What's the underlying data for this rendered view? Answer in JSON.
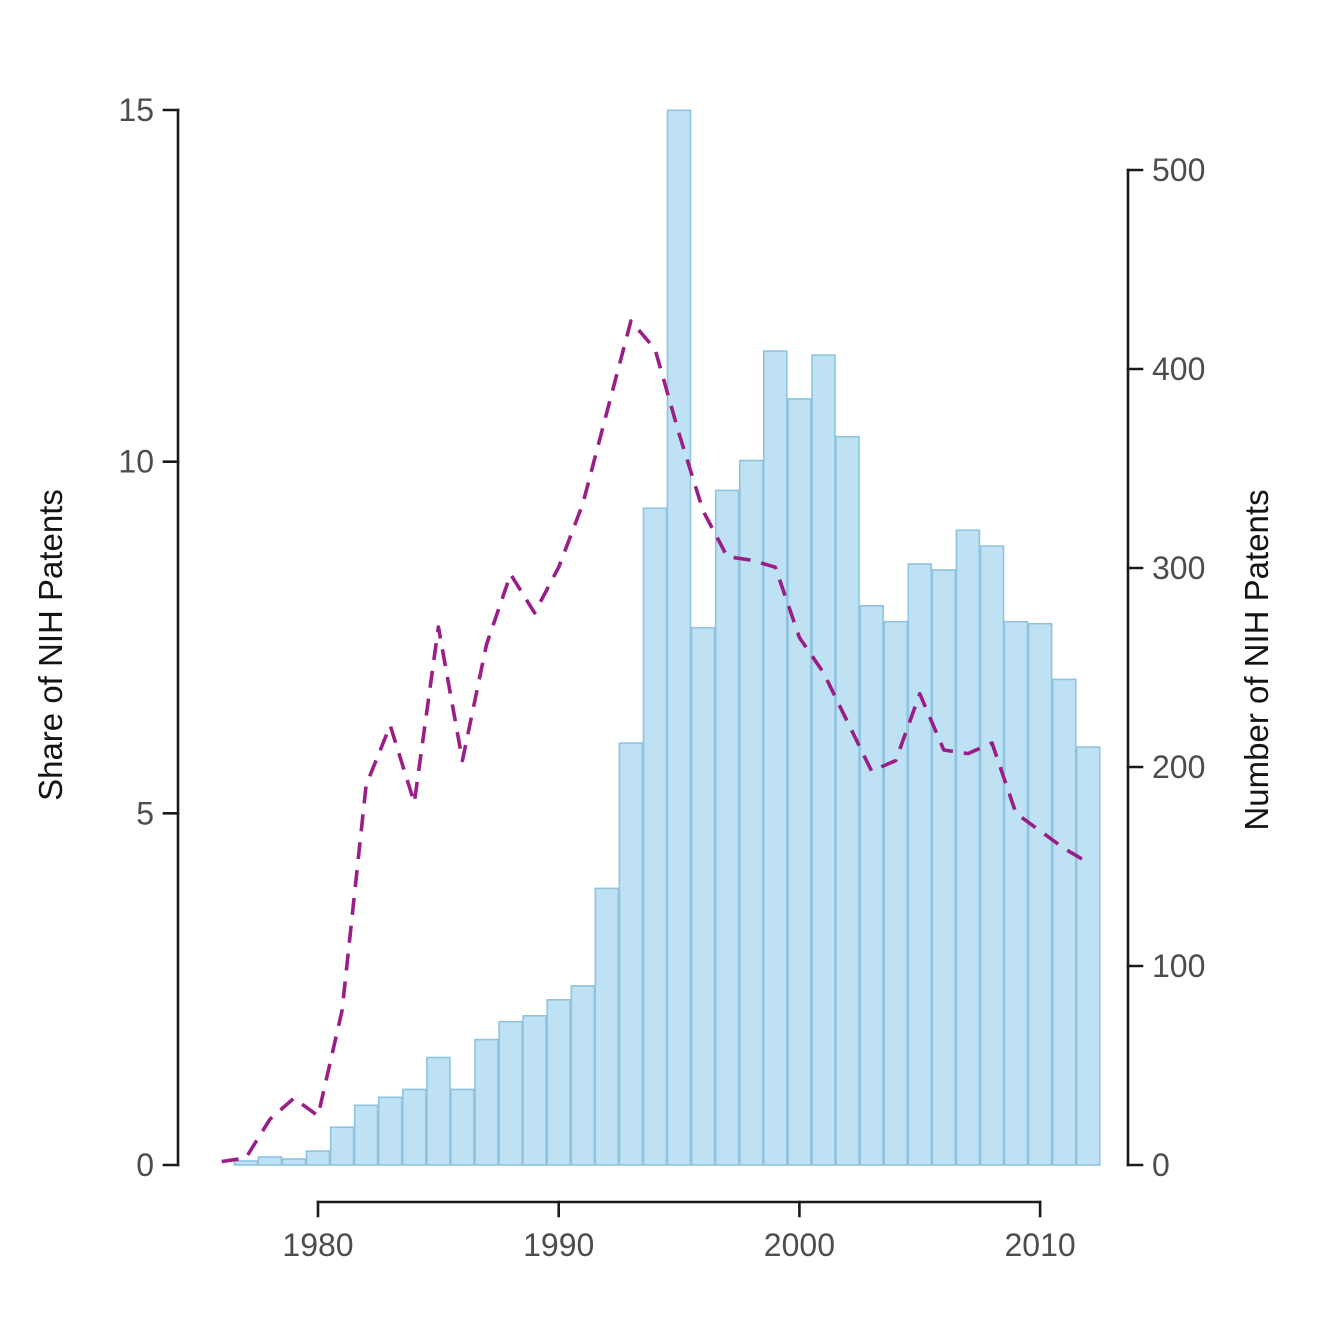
{
  "chart_data": {
    "type": "bar",
    "title": "",
    "description": "Dual-axis chart: light blue bars show annual number of NIH patents (right axis); dashed purple line shows share of NIH patents in percent (left axis).",
    "left_axis": {
      "label": "Share of NIH Patents",
      "ticks": [
        0,
        5,
        10,
        15
      ],
      "range": [
        0,
        15
      ]
    },
    "right_axis": {
      "label": "Number of NIH Patents",
      "ticks": [
        0,
        100,
        200,
        300,
        400,
        500
      ],
      "range": [
        0,
        500
      ]
    },
    "x_axis": {
      "label": "",
      "ticks": [
        1980,
        1990,
        2000,
        2010
      ],
      "range": [
        1976,
        2013
      ]
    },
    "series": [
      {
        "name": "Number of NIH Patents",
        "type": "bar",
        "axis": "right",
        "years": [
          1977,
          1978,
          1979,
          1980,
          1981,
          1982,
          1983,
          1984,
          1985,
          1986,
          1987,
          1988,
          1989,
          1990,
          1991,
          1992,
          1993,
          1994,
          1995,
          1996,
          1997,
          1998,
          1999,
          2000,
          2001,
          2002,
          2003,
          2004,
          2005,
          2006,
          2007,
          2008,
          2009,
          2010,
          2011,
          2012
        ],
        "values": [
          2,
          4,
          3,
          7,
          19,
          30,
          34,
          38,
          54,
          38,
          63,
          72,
          75,
          83,
          90,
          139,
          212,
          330,
          530,
          270,
          339,
          354,
          409,
          385,
          407,
          366,
          281,
          273,
          302,
          299,
          319,
          311,
          273,
          272,
          244,
          210
        ]
      },
      {
        "name": "Share of NIH Patents",
        "type": "line",
        "axis": "left",
        "style": "dashed",
        "years": [
          1976,
          1977,
          1978,
          1979,
          1980,
          1981,
          1982,
          1983,
          1984,
          1985,
          1986,
          1987,
          1988,
          1989,
          1990,
          1991,
          1992,
          1993,
          1994,
          1995,
          1996,
          1997,
          1998,
          1999,
          2000,
          2001,
          2002,
          2003,
          2004,
          2005,
          2006,
          2007,
          2008,
          2009,
          2010,
          2011,
          2012
        ],
        "values": [
          0.05,
          0.1,
          0.65,
          0.95,
          0.7,
          2.2,
          5.4,
          6.25,
          5.15,
          7.65,
          5.75,
          7.4,
          8.4,
          7.85,
          8.5,
          9.4,
          10.7,
          12.0,
          11.6,
          10.4,
          9.3,
          8.65,
          8.6,
          8.5,
          7.5,
          7.0,
          6.3,
          5.6,
          5.75,
          6.7,
          5.9,
          5.85,
          6.0,
          5.0,
          4.75,
          4.5,
          4.3
        ]
      }
    ],
    "grid": false,
    "legend": "none",
    "colors": {
      "bar_fill": "#BEE1F4",
      "bar_stroke": "#8FC3DF",
      "line": "#9B1D87",
      "axis": "#1a1a1a",
      "tick_label": "#4d4d4d",
      "title": "#141414",
      "background": "#ffffff"
    }
  }
}
